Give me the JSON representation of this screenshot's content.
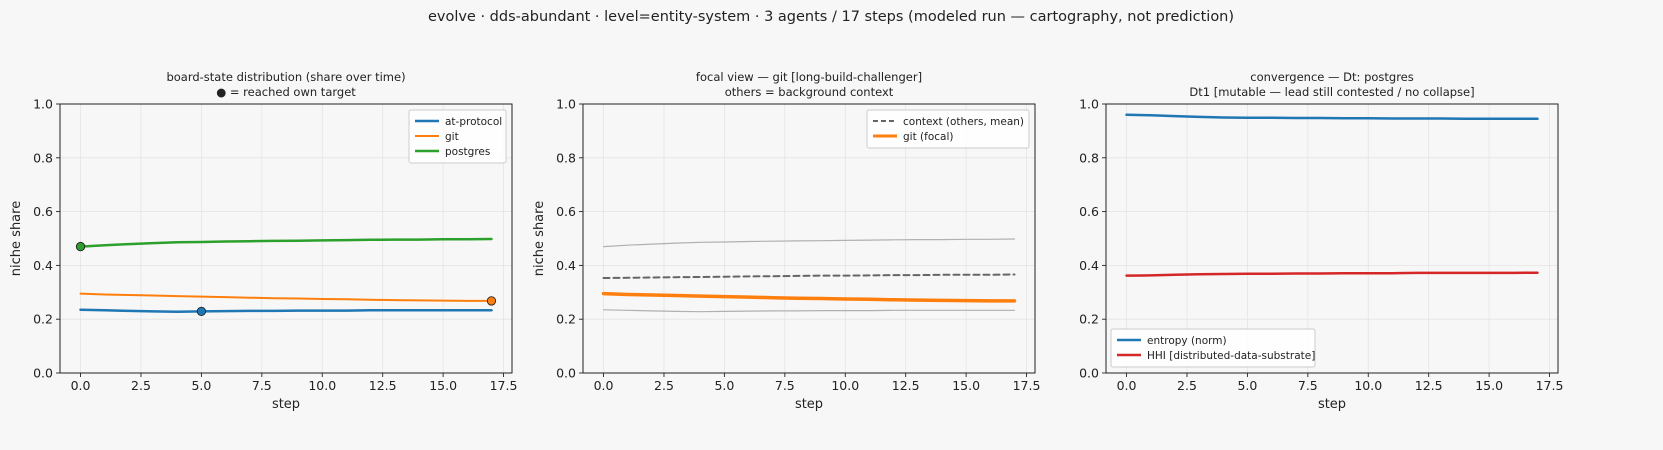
{
  "suptitle": "evolve · dds-abundant · level=entity-system · 3 agents / 17 steps   (modeled run — cartography, not prediction)",
  "chart_data": [
    {
      "type": "line",
      "title": "board-state distribution (share over time)",
      "subtitle": "● = reached own target",
      "xlabel": "step",
      "ylabel": "niche share",
      "xlim": [
        -0.85,
        17.85
      ],
      "ylim": [
        0,
        1
      ],
      "xticks": [
        0,
        2.5,
        5,
        7.5,
        10,
        12.5,
        15,
        17.5
      ],
      "xtick_labels": [
        "0.0",
        "2.5",
        "5.0",
        "7.5",
        "10.0",
        "12.5",
        "15.0",
        "17.5"
      ],
      "yticks": [
        0,
        0.2,
        0.4,
        0.6,
        0.8,
        1.0
      ],
      "ytick_labels": [
        "0.0",
        "0.2",
        "0.4",
        "0.6",
        "0.8",
        "1.0"
      ],
      "grid": true,
      "legend_position": "top-right",
      "series": [
        {
          "name": "at-protocol",
          "color": "#1f77b4",
          "width": 2.5,
          "dash": "",
          "x": [
            0,
            1,
            2,
            3,
            4,
            5,
            6,
            7,
            8,
            9,
            10,
            11,
            12,
            13,
            14,
            15,
            16,
            17
          ],
          "y": [
            0.235,
            0.233,
            0.231,
            0.229,
            0.228,
            0.229,
            0.23,
            0.231,
            0.231,
            0.232,
            0.232,
            0.232,
            0.233,
            0.233,
            0.233,
            0.233,
            0.233,
            0.233
          ],
          "markers": [
            {
              "x": 5,
              "y": 0.229
            }
          ]
        },
        {
          "name": "git",
          "color": "#ff7f0e",
          "width": 2.0,
          "dash": "",
          "x": [
            0,
            1,
            2,
            3,
            4,
            5,
            6,
            7,
            8,
            9,
            10,
            11,
            12,
            13,
            14,
            15,
            16,
            17
          ],
          "y": [
            0.295,
            0.292,
            0.29,
            0.288,
            0.286,
            0.284,
            0.282,
            0.28,
            0.278,
            0.277,
            0.275,
            0.274,
            0.272,
            0.271,
            0.27,
            0.269,
            0.268,
            0.268
          ],
          "markers": [
            {
              "x": 17,
              "y": 0.268
            }
          ]
        },
        {
          "name": "postgres",
          "color": "#2ca02c",
          "width": 2.5,
          "dash": "",
          "x": [
            0,
            1,
            2,
            3,
            4,
            5,
            6,
            7,
            8,
            9,
            10,
            11,
            12,
            13,
            14,
            15,
            16,
            17
          ],
          "y": [
            0.47,
            0.475,
            0.479,
            0.483,
            0.486,
            0.487,
            0.489,
            0.49,
            0.491,
            0.492,
            0.493,
            0.494,
            0.495,
            0.496,
            0.496,
            0.497,
            0.497,
            0.498
          ],
          "markers": [
            {
              "x": 0,
              "y": 0.47
            }
          ]
        }
      ]
    },
    {
      "type": "line",
      "title": "focal view — git  [long-build-challenger]",
      "subtitle": "others = background context",
      "xlabel": "step",
      "ylabel": "niche share",
      "xlim": [
        -0.85,
        17.85
      ],
      "ylim": [
        0,
        1
      ],
      "xticks": [
        0,
        2.5,
        5,
        7.5,
        10,
        12.5,
        15,
        17.5
      ],
      "xtick_labels": [
        "0.0",
        "2.5",
        "5.0",
        "7.5",
        "10.0",
        "12.5",
        "15.0",
        "17.5"
      ],
      "yticks": [
        0,
        0.2,
        0.4,
        0.6,
        0.8,
        1.0
      ],
      "ytick_labels": [
        "0.0",
        "0.2",
        "0.4",
        "0.6",
        "0.8",
        "1.0"
      ],
      "grid": true,
      "legend_position": "top-right",
      "series": [
        {
          "name": "",
          "color": "#b0b0b0",
          "width": 1.2,
          "dash": "",
          "x": [
            0,
            1,
            2,
            3,
            4,
            5,
            6,
            7,
            8,
            9,
            10,
            11,
            12,
            13,
            14,
            15,
            16,
            17
          ],
          "y": [
            0.47,
            0.475,
            0.479,
            0.483,
            0.486,
            0.487,
            0.489,
            0.49,
            0.491,
            0.492,
            0.493,
            0.494,
            0.495,
            0.496,
            0.496,
            0.497,
            0.497,
            0.498
          ]
        },
        {
          "name": "",
          "color": "#b0b0b0",
          "width": 1.2,
          "dash": "",
          "x": [
            0,
            1,
            2,
            3,
            4,
            5,
            6,
            7,
            8,
            9,
            10,
            11,
            12,
            13,
            14,
            15,
            16,
            17
          ],
          "y": [
            0.235,
            0.233,
            0.231,
            0.229,
            0.228,
            0.229,
            0.23,
            0.231,
            0.231,
            0.232,
            0.232,
            0.232,
            0.233,
            0.233,
            0.233,
            0.233,
            0.233,
            0.233
          ]
        },
        {
          "name": "context (others, mean)",
          "color": "#666666",
          "width": 2.0,
          "dash": "6,4",
          "x": [
            0,
            1,
            2,
            3,
            4,
            5,
            6,
            7,
            8,
            9,
            10,
            11,
            12,
            13,
            14,
            15,
            16,
            17
          ],
          "y": [
            0.353,
            0.354,
            0.355,
            0.356,
            0.357,
            0.358,
            0.359,
            0.36,
            0.361,
            0.362,
            0.362,
            0.363,
            0.364,
            0.364,
            0.365,
            0.365,
            0.365,
            0.366
          ]
        },
        {
          "name": "git (focal)",
          "color": "#ff7f0e",
          "width": 3.5,
          "dash": "",
          "x": [
            0,
            1,
            2,
            3,
            4,
            5,
            6,
            7,
            8,
            9,
            10,
            11,
            12,
            13,
            14,
            15,
            16,
            17
          ],
          "y": [
            0.295,
            0.292,
            0.29,
            0.288,
            0.286,
            0.284,
            0.282,
            0.28,
            0.278,
            0.277,
            0.275,
            0.274,
            0.272,
            0.271,
            0.27,
            0.269,
            0.268,
            0.268
          ]
        }
      ]
    },
    {
      "type": "line",
      "title": "convergence — Dt: postgres",
      "subtitle": "Dt1 [mutable — lead still contested / no collapse]",
      "xlabel": "step",
      "ylabel": "",
      "xlim": [
        -0.85,
        17.85
      ],
      "ylim": [
        0,
        1
      ],
      "xticks": [
        0,
        2.5,
        5,
        7.5,
        10,
        12.5,
        15,
        17.5
      ],
      "xtick_labels": [
        "0.0",
        "2.5",
        "5.0",
        "7.5",
        "10.0",
        "12.5",
        "15.0",
        "17.5"
      ],
      "yticks": [
        0,
        0.2,
        0.4,
        0.6,
        0.8,
        1.0
      ],
      "ytick_labels": [
        "0.0",
        "0.2",
        "0.4",
        "0.6",
        "0.8",
        "1.0"
      ],
      "grid": true,
      "legend_position": "bottom-left",
      "series": [
        {
          "name": "entropy (norm)",
          "color": "#1f77b4",
          "width": 2.5,
          "dash": "",
          "x": [
            0,
            1,
            2,
            3,
            4,
            5,
            6,
            7,
            8,
            9,
            10,
            11,
            12,
            13,
            14,
            15,
            16,
            17
          ],
          "y": [
            0.96,
            0.958,
            0.955,
            0.952,
            0.95,
            0.949,
            0.949,
            0.948,
            0.948,
            0.947,
            0.947,
            0.946,
            0.946,
            0.946,
            0.945,
            0.945,
            0.945,
            0.945
          ]
        },
        {
          "name": "HHI [distributed-data-substrate]",
          "color": "#d62728",
          "width": 2.5,
          "dash": "",
          "x": [
            0,
            1,
            2,
            3,
            4,
            5,
            6,
            7,
            8,
            9,
            10,
            11,
            12,
            13,
            14,
            15,
            16,
            17
          ],
          "y": [
            0.362,
            0.363,
            0.365,
            0.367,
            0.368,
            0.369,
            0.369,
            0.37,
            0.37,
            0.371,
            0.371,
            0.371,
            0.372,
            0.372,
            0.372,
            0.372,
            0.372,
            0.373
          ]
        }
      ]
    }
  ]
}
